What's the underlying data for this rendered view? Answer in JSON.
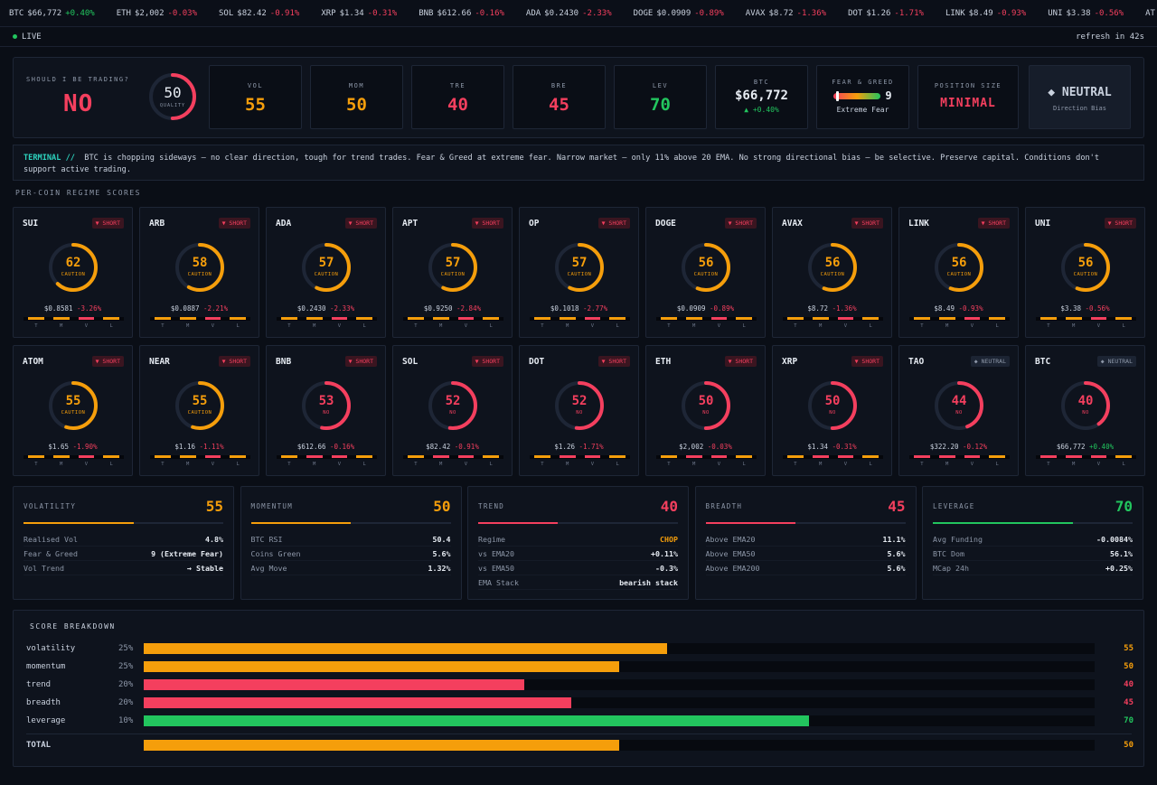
{
  "ticker": [
    {
      "sym": "BTC",
      "price": "$66,772",
      "chg": "+0.40%",
      "dir": "pos"
    },
    {
      "sym": "ETH",
      "price": "$2,002",
      "chg": "-0.03%",
      "dir": "neg"
    },
    {
      "sym": "SOL",
      "price": "$82.42",
      "chg": "-0.91%",
      "dir": "neg"
    },
    {
      "sym": "XRP",
      "price": "$1.34",
      "chg": "-0.31%",
      "dir": "neg"
    },
    {
      "sym": "BNB",
      "price": "$612.66",
      "chg": "-0.16%",
      "dir": "neg"
    },
    {
      "sym": "ADA",
      "price": "$0.2430",
      "chg": "-2.33%",
      "dir": "neg"
    },
    {
      "sym": "DOGE",
      "price": "$0.0909",
      "chg": "-0.89%",
      "dir": "neg"
    },
    {
      "sym": "AVAX",
      "price": "$8.72",
      "chg": "-1.36%",
      "dir": "neg"
    },
    {
      "sym": "DOT",
      "price": "$1.26",
      "chg": "-1.71%",
      "dir": "neg"
    },
    {
      "sym": "LINK",
      "price": "$8.49",
      "chg": "-0.93%",
      "dir": "neg"
    },
    {
      "sym": "UNI",
      "price": "$3.38",
      "chg": "-0.56%",
      "dir": "neg"
    },
    {
      "sym": "AT",
      "price": "",
      "chg": "",
      "dir": "neg"
    }
  ],
  "status": {
    "live": "LIVE",
    "refresh": "refresh in 42s"
  },
  "header": {
    "question": "SHOULD I BE TRADING?",
    "answer": "NO",
    "quality_score": "50",
    "quality_value": 50,
    "quality_label": "QUALITY",
    "metrics": [
      {
        "label": "VOL",
        "value": "55",
        "color": "#f59e0b"
      },
      {
        "label": "MOM",
        "value": "50",
        "color": "#f59e0b"
      },
      {
        "label": "TRE",
        "value": "40",
        "color": "#f43f5e"
      },
      {
        "label": "BRE",
        "value": "45",
        "color": "#f43f5e"
      },
      {
        "label": "LEV",
        "value": "70",
        "color": "#22c55e"
      }
    ],
    "btc": {
      "label": "BTC",
      "price": "$66,772",
      "change": "▲ +0.40%"
    },
    "fear_greed": {
      "label": "FEAR & GREED",
      "value": "9",
      "text": "Extreme Fear"
    },
    "position_size": {
      "label": "POSITION SIZE",
      "value": "MINIMAL"
    },
    "direction": {
      "value": "◆ NEUTRAL",
      "label": "Direction Bias"
    }
  },
  "terminal": {
    "key": "TERMINAL //",
    "text": "BTC is chopping sideways — no clear direction, tough for trend trades. Fear & Greed at extreme fear. Narrow market — only 11% above 20 EMA. No strong directional bias — be selective. Preserve capital. Conditions don't support active trading."
  },
  "section_title": "PER-COIN REGIME SCORES",
  "coins": [
    {
      "sym": "SUI",
      "badge": "▼ SHORT",
      "score": "62",
      "score_value": 62,
      "label": "CAUTION",
      "price": "$0.8581",
      "chg": "-3.26%",
      "dir": "neg",
      "bars": [
        "#f59e0b",
        "#f59e0b",
        "#f43f5e",
        "#f59e0b"
      ]
    },
    {
      "sym": "ARB",
      "badge": "▼ SHORT",
      "score": "58",
      "score_value": 58,
      "label": "CAUTION",
      "price": "$0.0887",
      "chg": "-2.21%",
      "dir": "neg",
      "bars": [
        "#f59e0b",
        "#f59e0b",
        "#f43f5e",
        "#f59e0b"
      ]
    },
    {
      "sym": "ADA",
      "badge": "▼ SHORT",
      "score": "57",
      "score_value": 57,
      "label": "CAUTION",
      "price": "$0.2430",
      "chg": "-2.33%",
      "dir": "neg",
      "bars": [
        "#f59e0b",
        "#f59e0b",
        "#f43f5e",
        "#f59e0b"
      ]
    },
    {
      "sym": "APT",
      "badge": "▼ SHORT",
      "score": "57",
      "score_value": 57,
      "label": "CAUTION",
      "price": "$0.9250",
      "chg": "-2.84%",
      "dir": "neg",
      "bars": [
        "#f59e0b",
        "#f59e0b",
        "#f43f5e",
        "#f59e0b"
      ]
    },
    {
      "sym": "OP",
      "badge": "▼ SHORT",
      "score": "57",
      "score_value": 57,
      "label": "CAUTION",
      "price": "$0.1018",
      "chg": "-2.77%",
      "dir": "neg",
      "bars": [
        "#f59e0b",
        "#f59e0b",
        "#f43f5e",
        "#f59e0b"
      ]
    },
    {
      "sym": "DOGE",
      "badge": "▼ SHORT",
      "score": "56",
      "score_value": 56,
      "label": "CAUTION",
      "price": "$0.0909",
      "chg": "-0.89%",
      "dir": "neg",
      "bars": [
        "#f59e0b",
        "#f59e0b",
        "#f43f5e",
        "#f59e0b"
      ]
    },
    {
      "sym": "AVAX",
      "badge": "▼ SHORT",
      "score": "56",
      "score_value": 56,
      "label": "CAUTION",
      "price": "$8.72",
      "chg": "-1.36%",
      "dir": "neg",
      "bars": [
        "#f59e0b",
        "#f59e0b",
        "#f43f5e",
        "#f59e0b"
      ]
    },
    {
      "sym": "LINK",
      "badge": "▼ SHORT",
      "score": "56",
      "score_value": 56,
      "label": "CAUTION",
      "price": "$8.49",
      "chg": "-0.93%",
      "dir": "neg",
      "bars": [
        "#f59e0b",
        "#f59e0b",
        "#f43f5e",
        "#f59e0b"
      ]
    },
    {
      "sym": "UNI",
      "badge": "▼ SHORT",
      "score": "56",
      "score_value": 56,
      "label": "CAUTION",
      "price": "$3.38",
      "chg": "-0.56%",
      "dir": "neg",
      "bars": [
        "#f59e0b",
        "#f59e0b",
        "#f43f5e",
        "#f59e0b"
      ]
    },
    {
      "sym": "ATOM",
      "badge": "▼ SHORT",
      "score": "55",
      "score_value": 55,
      "label": "CAUTION",
      "price": "$1.65",
      "chg": "-1.90%",
      "dir": "neg",
      "bars": [
        "#f59e0b",
        "#f59e0b",
        "#f43f5e",
        "#f59e0b"
      ]
    },
    {
      "sym": "NEAR",
      "badge": "▼ SHORT",
      "score": "55",
      "score_value": 55,
      "label": "CAUTION",
      "price": "$1.16",
      "chg": "-1.11%",
      "dir": "neg",
      "bars": [
        "#f59e0b",
        "#f59e0b",
        "#f43f5e",
        "#f59e0b"
      ]
    },
    {
      "sym": "BNB",
      "badge": "▼ SHORT",
      "score": "53",
      "score_value": 53,
      "label": "NO",
      "price": "$612.66",
      "chg": "-0.16%",
      "dir": "neg",
      "bars": [
        "#f59e0b",
        "#f43f5e",
        "#f43f5e",
        "#f59e0b"
      ]
    },
    {
      "sym": "SOL",
      "badge": "▼ SHORT",
      "score": "52",
      "score_value": 52,
      "label": "NO",
      "price": "$82.42",
      "chg": "-0.91%",
      "dir": "neg",
      "bars": [
        "#f59e0b",
        "#f43f5e",
        "#f43f5e",
        "#f59e0b"
      ]
    },
    {
      "sym": "DOT",
      "badge": "▼ SHORT",
      "score": "52",
      "score_value": 52,
      "label": "NO",
      "price": "$1.26",
      "chg": "-1.71%",
      "dir": "neg",
      "bars": [
        "#f59e0b",
        "#f43f5e",
        "#f43f5e",
        "#f59e0b"
      ]
    },
    {
      "sym": "ETH",
      "badge": "▼ SHORT",
      "score": "50",
      "score_value": 50,
      "label": "NO",
      "price": "$2,002",
      "chg": "-0.03%",
      "dir": "neg",
      "bars": [
        "#f59e0b",
        "#f43f5e",
        "#f43f5e",
        "#f59e0b"
      ]
    },
    {
      "sym": "XRP",
      "badge": "▼ SHORT",
      "score": "50",
      "score_value": 50,
      "label": "NO",
      "price": "$1.34",
      "chg": "-0.31%",
      "dir": "neg",
      "bars": [
        "#f59e0b",
        "#f43f5e",
        "#f43f5e",
        "#f59e0b"
      ]
    },
    {
      "sym": "TAO",
      "badge": "◆ NEUTRAL",
      "score": "44",
      "score_value": 44,
      "label": "NO",
      "price": "$322.20",
      "chg": "-0.12%",
      "dir": "neg",
      "bars": [
        "#f43f5e",
        "#f43f5e",
        "#f43f5e",
        "#f59e0b"
      ]
    },
    {
      "sym": "BTC",
      "badge": "◆ NEUTRAL",
      "score": "40",
      "score_value": 40,
      "label": "NO",
      "price": "$66,772",
      "chg": "+0.40%",
      "dir": "pos",
      "bars": [
        "#f43f5e",
        "#f43f5e",
        "#f43f5e",
        "#f59e0b"
      ]
    }
  ],
  "bar_letters": [
    "T",
    "M",
    "V",
    "L"
  ],
  "panels": [
    {
      "title": "VOLATILITY",
      "score": "55",
      "score_value": 55,
      "color": "#f59e0b",
      "rows": [
        [
          "Realised Vol",
          "4.8%"
        ],
        [
          "Fear & Greed",
          "9 (Extreme Fear)"
        ],
        [
          "Vol Trend",
          "→ Stable"
        ]
      ]
    },
    {
      "title": "MOMENTUM",
      "score": "50",
      "score_value": 50,
      "color": "#f59e0b",
      "rows": [
        [
          "BTC RSI",
          "50.4"
        ],
        [
          "Coins Green",
          "5.6%"
        ],
        [
          "Avg Move",
          "1.32%"
        ]
      ]
    },
    {
      "title": "TREND",
      "score": "40",
      "score_value": 40,
      "color": "#f43f5e",
      "rows": [
        [
          "Regime",
          "CHOP"
        ],
        [
          "vs EMA20",
          "+0.11%"
        ],
        [
          "vs EMA50",
          "-0.3%"
        ],
        [
          "EMA Stack",
          "bearish stack"
        ]
      ]
    },
    {
      "title": "BREADTH",
      "score": "45",
      "score_value": 45,
      "color": "#f43f5e",
      "rows": [
        [
          "Above EMA20",
          "11.1%"
        ],
        [
          "Above EMA50",
          "5.6%"
        ],
        [
          "Above EMA200",
          "5.6%"
        ]
      ]
    },
    {
      "title": "LEVERAGE",
      "score": "70",
      "score_value": 70,
      "color": "#22c55e",
      "rows": [
        [
          "Avg Funding",
          "-0.0084%"
        ],
        [
          "BTC Dom",
          "56.1%"
        ],
        [
          "MCap 24h",
          "+0.25%"
        ]
      ]
    }
  ],
  "breakdown": {
    "title": "SCORE BREAKDOWN",
    "rows": [
      {
        "name": "volatility",
        "weight": "25%",
        "score": "55",
        "score_value": 55,
        "color": "#f59e0b"
      },
      {
        "name": "momentum",
        "weight": "25%",
        "score": "50",
        "score_value": 50,
        "color": "#f59e0b"
      },
      {
        "name": "trend",
        "weight": "20%",
        "score": "40",
        "score_value": 40,
        "color": "#f43f5e"
      },
      {
        "name": "breadth",
        "weight": "20%",
        "score": "45",
        "score_value": 45,
        "color": "#f43f5e"
      },
      {
        "name": "leverage",
        "weight": "10%",
        "score": "70",
        "score_value": 70,
        "color": "#22c55e"
      }
    ],
    "total": {
      "name": "TOTAL",
      "score": "50",
      "score_value": 50,
      "color": "#f59e0b"
    }
  }
}
